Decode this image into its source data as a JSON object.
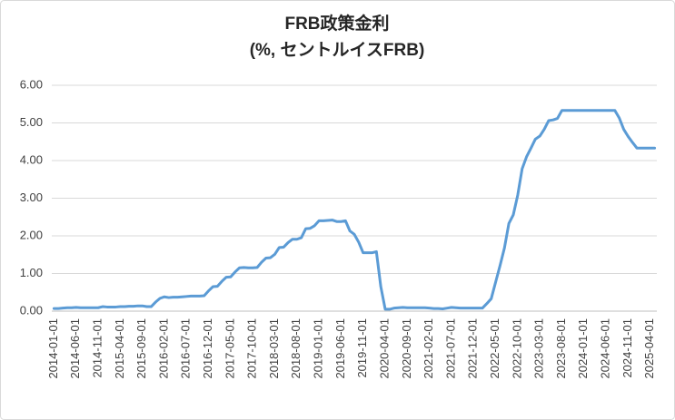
{
  "chart_data": {
    "type": "line",
    "title": "FRB政策金利",
    "subtitle": "(%, セントルイスFRB)",
    "categories": [
      "2014-01-01",
      null,
      null,
      null,
      null,
      "2014-06-01",
      null,
      null,
      null,
      null,
      "2014-11-01",
      null,
      null,
      null,
      null,
      "2015-04-01",
      null,
      null,
      null,
      null,
      "2015-09-01",
      null,
      null,
      null,
      null,
      "2016-02-01",
      null,
      null,
      null,
      null,
      "2016-07-01",
      null,
      null,
      null,
      null,
      "2016-12-01",
      null,
      null,
      null,
      null,
      "2017-05-01",
      null,
      null,
      null,
      null,
      "2017-10-01",
      null,
      null,
      null,
      null,
      "2018-03-01",
      null,
      null,
      null,
      null,
      "2018-08-01",
      null,
      null,
      null,
      null,
      "2019-01-01",
      null,
      null,
      null,
      null,
      "2019-06-01",
      null,
      null,
      null,
      null,
      "2019-11-01",
      null,
      null,
      null,
      null,
      "2020-04-01",
      null,
      null,
      null,
      null,
      "2020-09-01",
      null,
      null,
      null,
      null,
      "2021-02-01",
      null,
      null,
      null,
      null,
      "2021-07-01",
      null,
      null,
      null,
      null,
      "2021-12-01",
      null,
      null,
      null,
      null,
      "2022-05-01",
      null,
      null,
      null,
      null,
      "2022-10-01",
      null,
      null,
      null,
      null,
      "2023-03-01",
      null,
      null,
      null,
      null,
      "2023-08-01",
      null,
      null,
      null,
      null,
      "2024-01-01",
      null,
      null,
      null,
      null,
      "2024-06-01",
      null,
      null,
      null,
      null,
      "2024-11-01",
      null,
      null,
      null,
      null,
      "2025-04-01",
      null
    ],
    "series": [
      {
        "color": "#5b9bd5",
        "values": [
          0.07,
          0.07,
          0.08,
          0.09,
          0.09,
          0.1,
          0.09,
          0.09,
          0.09,
          0.09,
          0.09,
          0.12,
          0.11,
          0.11,
          0.11,
          0.12,
          0.12,
          0.13,
          0.13,
          0.14,
          0.14,
          0.12,
          0.12,
          0.24,
          0.34,
          0.38,
          0.36,
          0.37,
          0.37,
          0.38,
          0.39,
          0.4,
          0.4,
          0.4,
          0.41,
          0.54,
          0.65,
          0.66,
          0.79,
          0.9,
          0.91,
          1.04,
          1.15,
          1.16,
          1.15,
          1.15,
          1.16,
          1.3,
          1.41,
          1.42,
          1.51,
          1.69,
          1.7,
          1.82,
          1.91,
          1.91,
          1.95,
          2.19,
          2.2,
          2.27,
          2.4,
          2.4,
          2.41,
          2.42,
          2.38,
          2.38,
          2.4,
          2.13,
          2.04,
          1.83,
          1.55,
          1.55,
          1.55,
          1.58,
          0.65,
          0.05,
          0.05,
          0.08,
          0.09,
          0.1,
          0.09,
          0.09,
          0.09,
          0.09,
          0.09,
          0.08,
          0.07,
          0.07,
          0.06,
          0.08,
          0.1,
          0.09,
          0.08,
          0.08,
          0.08,
          0.08,
          0.08,
          0.08,
          0.2,
          0.33,
          0.77,
          1.21,
          1.68,
          2.33,
          2.56,
          3.08,
          3.78,
          4.1,
          4.33,
          4.57,
          4.65,
          4.83,
          5.06,
          5.08,
          5.12,
          5.33,
          5.33,
          5.33,
          5.33,
          5.33,
          5.33,
          5.33,
          5.33,
          5.33,
          5.33,
          5.33,
          5.33,
          5.33,
          5.13,
          4.83,
          4.64,
          4.48,
          4.33,
          4.33,
          4.33,
          4.33,
          4.33
        ]
      }
    ],
    "ylim": [
      0,
      6
    ],
    "yticks": [
      {
        "value": 0,
        "label": "0.00"
      },
      {
        "value": 1,
        "label": "1.00"
      },
      {
        "value": 2,
        "label": "2.00"
      },
      {
        "value": 3,
        "label": "3.00"
      },
      {
        "value": 4,
        "label": "4.00"
      },
      {
        "value": 5,
        "label": "5.00"
      },
      {
        "value": 6,
        "label": "6.00"
      }
    ],
    "grid": true
  }
}
